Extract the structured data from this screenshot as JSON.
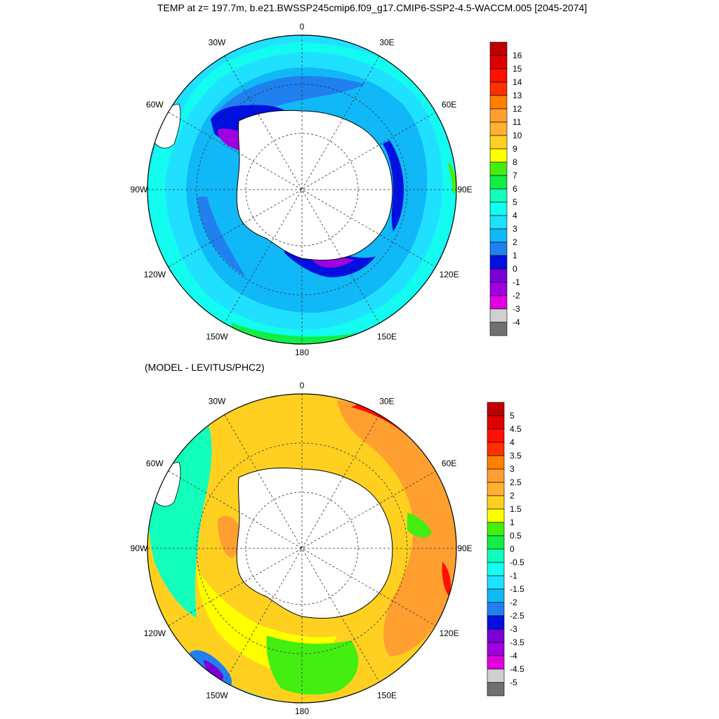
{
  "title": "TEMP at z= 197.7m, b.e21.BWSSP245cmip6.f09_g17.CMIP6-SSP2-4.5-WACCM.005 [2045-2074]",
  "diff_title": "(MODEL - LEVITUS/PHC2)",
  "lon_labels": [
    "0",
    "30E",
    "60E",
    "90E",
    "120E",
    "150E",
    "180",
    "150W",
    "120W",
    "90W",
    "60W",
    "30W"
  ],
  "chart_data": [
    {
      "type": "heatmap",
      "name": "",
      "projection": "south-polar-stereographic",
      "colorbar_levels": [
        "16",
        "15",
        "14",
        "13",
        "12",
        "11",
        "10",
        "9",
        "8",
        "7",
        "6",
        "5",
        "4",
        "3",
        "2",
        "1",
        "0",
        "-1",
        "-2",
        "-3",
        "-4"
      ],
      "colors": [
        "#c00000",
        "#e10000",
        "#ff1000",
        "#ff3000",
        "#ff8000",
        "#ff9f30",
        "#ffb030",
        "#ffd020",
        "#ffff00",
        "#44ee11",
        "#11ee44",
        "#11ffbb",
        "#11ffee",
        "#20e0ff",
        "#10b8f8",
        "#2080f0",
        "#0010e0",
        "#7a00d8",
        "#a000e0",
        "#e000e0",
        "#d0d0d0",
        "#707070"
      ],
      "sectors": [
        {
          "lon": 0,
          "values": [
            6,
            4,
            2,
            1
          ]
        },
        {
          "lon": 90,
          "values": [
            6,
            5,
            3,
            2,
            0
          ]
        },
        {
          "lon": 180,
          "values": [
            7,
            4,
            2,
            1
          ]
        },
        {
          "lon": 270,
          "values": [
            6,
            4,
            2,
            1
          ]
        }
      ]
    },
    {
      "type": "heatmap",
      "name": "(MODEL - LEVITUS/PHC2)",
      "projection": "south-polar-stereographic",
      "colorbar_levels": [
        "5",
        "4.5",
        "4",
        "3.5",
        "3",
        "2.5",
        "2",
        "1.5",
        "1",
        "0.5",
        "0",
        "-0.5",
        "-1",
        "-1.5",
        "-2",
        "-2.5",
        "-3",
        "-3.5",
        "-4",
        "-4.5",
        "-5"
      ],
      "colors": [
        "#c00000",
        "#e10000",
        "#ff1000",
        "#ff3000",
        "#ff8000",
        "#ff9f30",
        "#ffb030",
        "#ffd020",
        "#ffff00",
        "#44ee11",
        "#11ee44",
        "#11ffbb",
        "#11ffee",
        "#20e0ff",
        "#10b8f8",
        "#2080f0",
        "#0010e0",
        "#7a00d8",
        "#a000e0",
        "#e000e0",
        "#d0d0d0",
        "#707070"
      ],
      "sectors": [
        {
          "lon": 30,
          "values": [
            4.5,
            3.5,
            2.5
          ]
        },
        {
          "lon": 90,
          "values": [
            3.5,
            2.5,
            1.5
          ]
        },
        {
          "lon": 180,
          "values": [
            1.5,
            1.0,
            0.5
          ]
        },
        {
          "lon": 210,
          "values": [
            -3.5,
            -1.5,
            0.5
          ]
        },
        {
          "lon": 270,
          "values": [
            0.5,
            1.5,
            2.0
          ]
        }
      ]
    }
  ]
}
